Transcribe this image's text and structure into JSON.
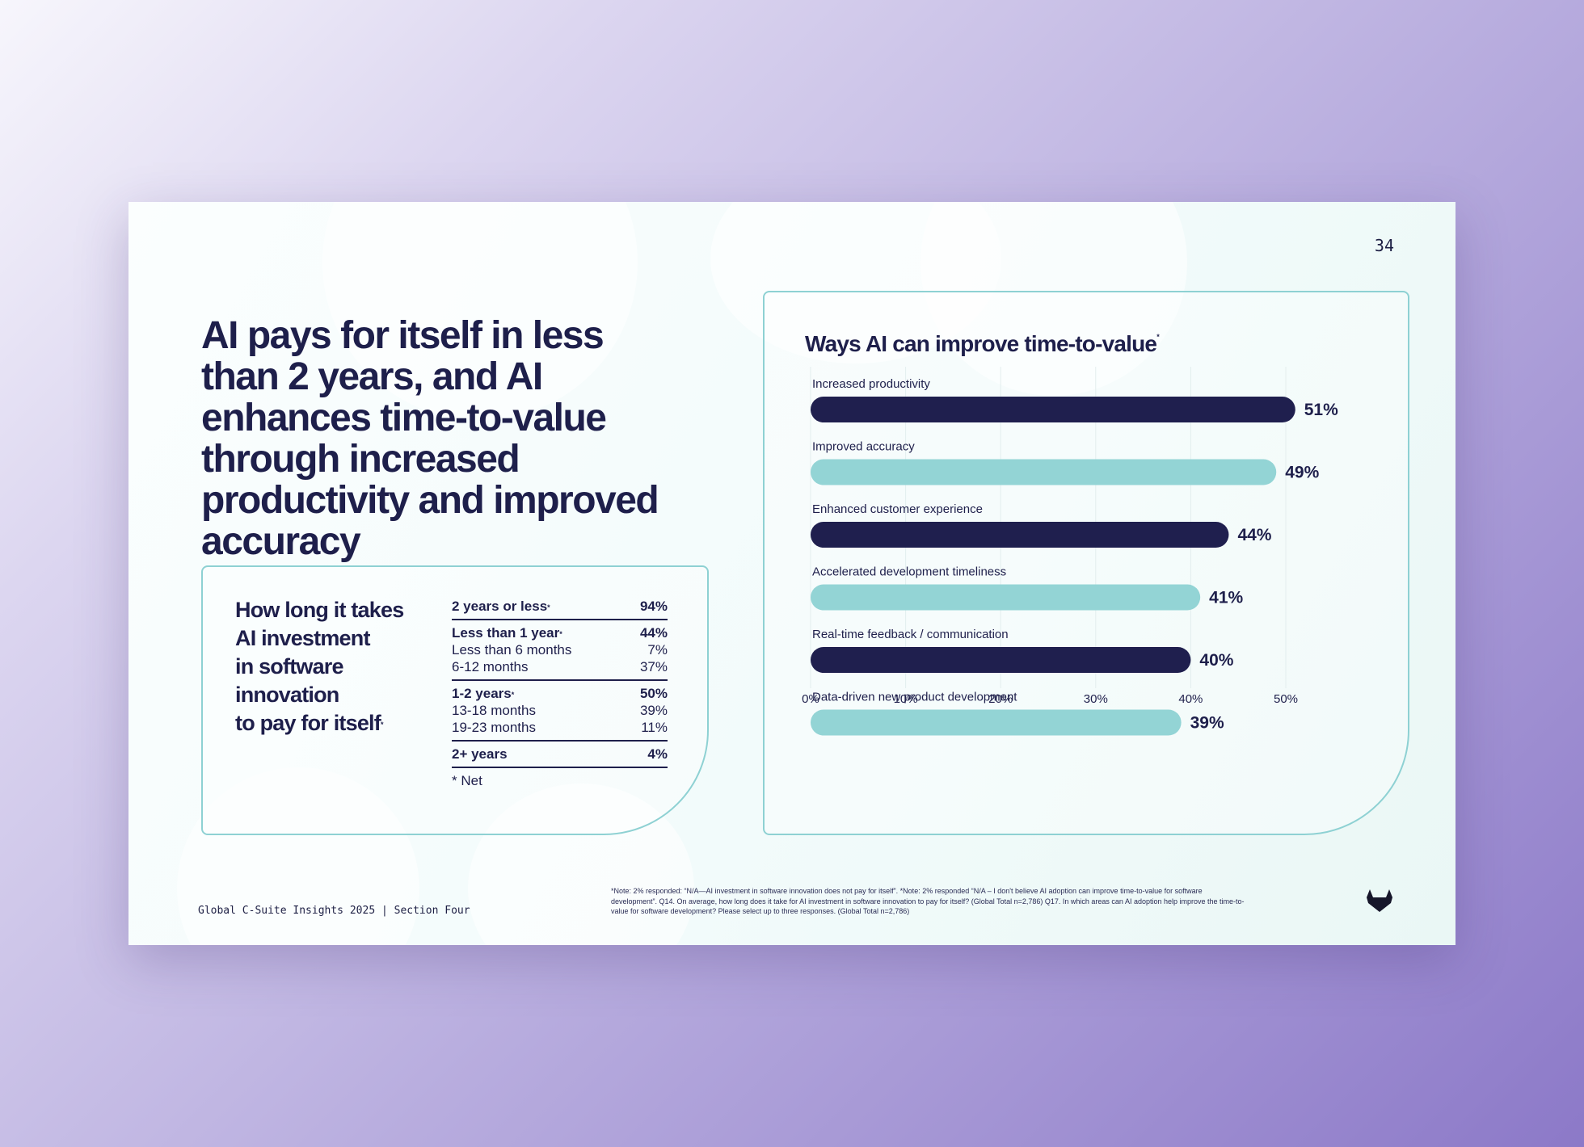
{
  "page_number": "34",
  "headline": "AI pays for itself in less than 2 years, and AI enhances time-to-value through increased productivity and improved accuracy",
  "payback": {
    "title": "How long it takes AI investment in software innovation to pay for itself",
    "title_lines": [
      "How long it takes",
      "AI investment",
      "in software",
      "innovation",
      "to pay for itself"
    ],
    "groups": [
      {
        "rows": [
          {
            "label": "2 years or less",
            "value": "94%",
            "bold": true,
            "net": true
          }
        ]
      },
      {
        "rows": [
          {
            "label": "Less than 1 year",
            "value": "44%",
            "bold": true,
            "net": true
          },
          {
            "label": "Less than 6 months",
            "value": "7%",
            "bold": false
          },
          {
            "label": "6-12 months",
            "value": "37%",
            "bold": false
          }
        ]
      },
      {
        "rows": [
          {
            "label": "1-2 years",
            "value": "50%",
            "bold": true,
            "net": true
          },
          {
            "label": "13-18 months",
            "value": "39%",
            "bold": false
          },
          {
            "label": "19-23 months",
            "value": "11%",
            "bold": false
          }
        ]
      },
      {
        "rows": [
          {
            "label": "2+ years",
            "value": "4%",
            "bold": true
          }
        ]
      }
    ],
    "note": "* Net"
  },
  "chart_data": {
    "type": "bar",
    "orientation": "horizontal",
    "title": "Ways AI can improve time-to-value",
    "categories": [
      "Increased productivity",
      "Improved accuracy",
      "Enhanced customer experience",
      "Accelerated development timeliness",
      "Real-time feedback / communication",
      "Data-driven new product development"
    ],
    "values": [
      51,
      49,
      44,
      41,
      40,
      39
    ],
    "value_labels": [
      "51%",
      "49%",
      "44%",
      "41%",
      "40%",
      "39%"
    ],
    "bar_colors": [
      "#1f1f4e",
      "#93d4d5",
      "#1f1f4e",
      "#93d4d5",
      "#1f1f4e",
      "#93d4d5"
    ],
    "xlim": [
      0,
      50
    ],
    "xticks": [
      "0%",
      "10%",
      "20%",
      "30%",
      "40%",
      "50%"
    ],
    "grid": true,
    "legend": "none"
  },
  "footer": {
    "report": "Global C-Suite Insights 2025 | Section Four",
    "footnote": "*Note: 2% responded: “N/A—AI investment in software innovation does not pay for itself”.  *Note: 2% responded “N/A – I don't believe AI adoption can improve time-to-value for software development”. Q14. On average, how long does it take for AI investment in software innovation to pay for itself? (Global Total n=2,786) Q17. In which areas can AI adoption help improve the time-to-value for software development? Please select up to three responses. (Global Total n=2,786)"
  },
  "colors": {
    "navy": "#1f1f4e",
    "teal": "#93d4d5",
    "border": "#8ed1d3"
  },
  "icons": {
    "logo": "gitlab-fox-icon"
  }
}
